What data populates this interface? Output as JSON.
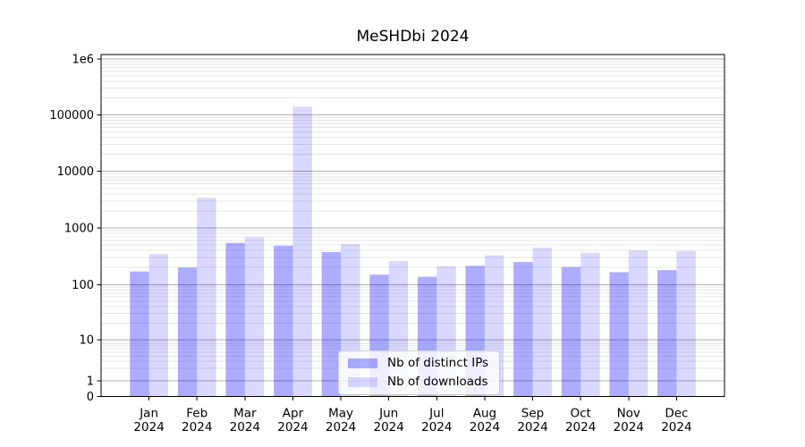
{
  "chart_data": {
    "type": "bar",
    "title": "MeSHDbi 2024",
    "y_scale": "symlog",
    "grid": true,
    "legend_position": "lower center",
    "ylim": [
      0,
      1200000
    ],
    "categories": [
      "Jan 2024",
      "Feb 2024",
      "Mar 2024",
      "Apr 2024",
      "May 2024",
      "Jun 2024",
      "Jul 2024",
      "Aug 2024",
      "Sep 2024",
      "Oct 2024",
      "Nov 2024",
      "Dec 2024"
    ],
    "series": [
      {
        "name": "Nb of distinct IPs",
        "color": "#0000ff52",
        "values": [
          170,
          200,
          545,
          485,
          375,
          150,
          137,
          215,
          250,
          205,
          165,
          180
        ]
      },
      {
        "name": "Nb of downloads",
        "color": "#0000ff26",
        "values": [
          345,
          3400,
          680,
          140000,
          520,
          260,
          210,
          330,
          450,
          365,
          400,
          390
        ]
      }
    ],
    "y_ticks": [
      {
        "label": "1e6",
        "value": 1000000
      },
      {
        "label": "100000",
        "value": 100000
      },
      {
        "label": "10000",
        "value": 10000
      },
      {
        "label": "1000",
        "value": 1000
      },
      {
        "label": "100",
        "value": 100
      },
      {
        "label": "10",
        "value": 10
      },
      {
        "label": "1",
        "value": 1
      },
      {
        "label": "0",
        "value": 0
      }
    ]
  }
}
